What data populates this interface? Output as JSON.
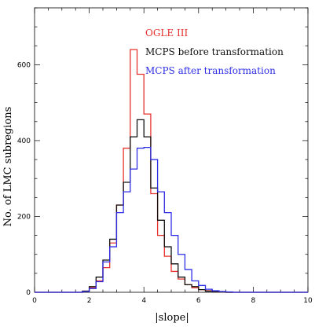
{
  "chart_data": {
    "type": "histogram",
    "xlabel": "|slope|",
    "ylabel": "No. of LMC subregions",
    "xlim": [
      0,
      10
    ],
    "ylim": [
      0,
      750
    ],
    "x_ticks": [
      0,
      2,
      4,
      6,
      8,
      10
    ],
    "y_ticks": [
      0,
      200,
      400,
      600
    ],
    "bin_width": 0.25,
    "bin_start": 0,
    "legend_position": "top-right",
    "series": [
      {
        "name": "OGLE III",
        "color": "#e8322d",
        "values": [
          0,
          0,
          0,
          0,
          0,
          0,
          0,
          3,
          12,
          30,
          65,
          130,
          230,
          380,
          640,
          575,
          470,
          260,
          150,
          95,
          55,
          35,
          20,
          12,
          7,
          4,
          2,
          1,
          0,
          0,
          0,
          0,
          0,
          0,
          0,
          0,
          0,
          0,
          0,
          0
        ]
      },
      {
        "name": "MCPS before transformation",
        "color": "#111111",
        "values": [
          0,
          0,
          0,
          0,
          0,
          0,
          0,
          3,
          15,
          40,
          85,
          140,
          230,
          290,
          410,
          455,
          410,
          275,
          190,
          120,
          75,
          40,
          20,
          15,
          7,
          3,
          2,
          1,
          0,
          0,
          0,
          0,
          0,
          0,
          0,
          0,
          0,
          0,
          0,
          0
        ]
      },
      {
        "name": "MCPS after transformation",
        "color": "#2e2ee6",
        "values": [
          0,
          0,
          0,
          0,
          0,
          0,
          0,
          2,
          10,
          28,
          80,
          120,
          210,
          265,
          325,
          380,
          382,
          350,
          265,
          210,
          150,
          100,
          60,
          30,
          18,
          8,
          4,
          2,
          1,
          0,
          0,
          0,
          0,
          0,
          0,
          0,
          0,
          0,
          0,
          0
        ]
      }
    ]
  }
}
